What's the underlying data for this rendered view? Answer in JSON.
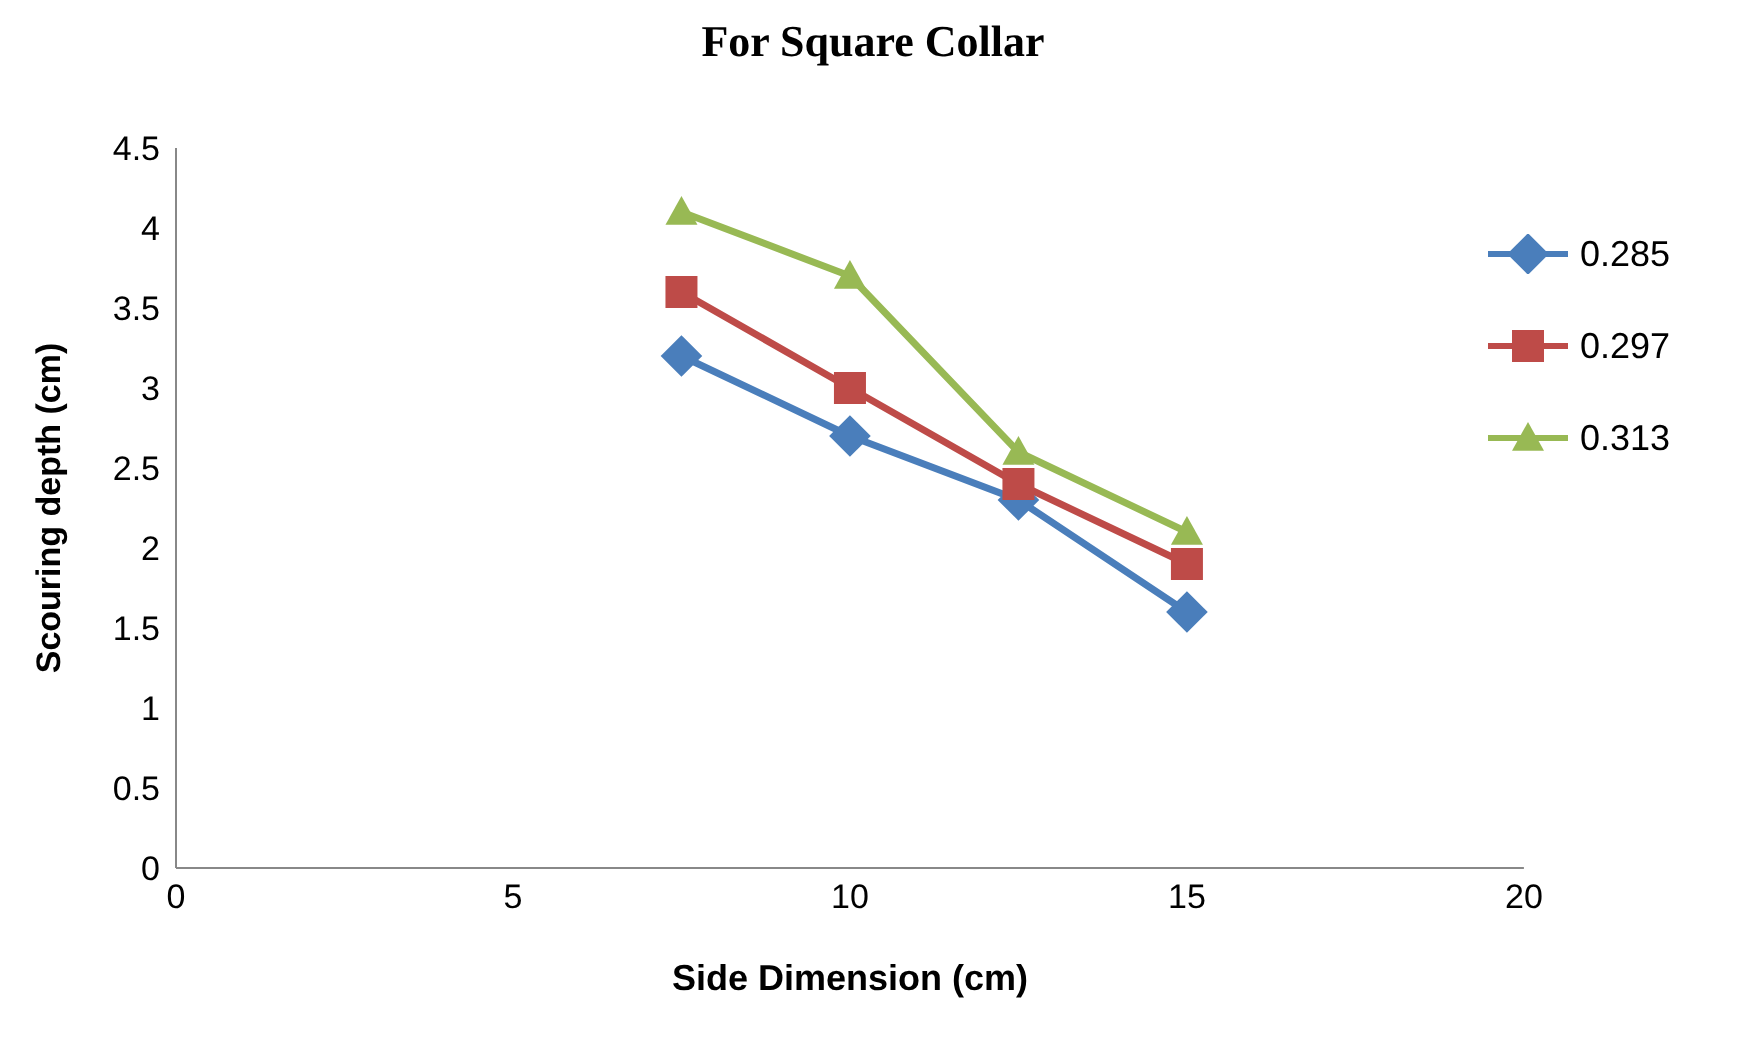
{
  "chart_data": {
    "type": "line",
    "title": "For Square Collar",
    "xlabel": "Side Dimension (cm)",
    "ylabel": "Scouring depth (cm)",
    "x": [
      7.5,
      10,
      12.5,
      15
    ],
    "series": [
      {
        "name": "0.285",
        "color": "#4a7ebb",
        "marker": "diamond",
        "values": [
          3.2,
          2.7,
          2.3,
          1.6
        ]
      },
      {
        "name": "0.297",
        "color": "#be4b48",
        "marker": "square",
        "values": [
          3.6,
          3.0,
          2.4,
          1.9
        ]
      },
      {
        "name": "0.313",
        "color": "#98b954",
        "marker": "triangle",
        "values": [
          4.1,
          3.7,
          2.6,
          2.1
        ]
      }
    ],
    "xlim": [
      0,
      20
    ],
    "xticks": [
      0,
      5,
      10,
      15,
      20
    ],
    "ylim": [
      0,
      4.5
    ],
    "yticks": [
      0,
      0.5,
      1,
      1.5,
      2,
      2.5,
      3,
      3.5,
      4,
      4.5
    ],
    "grid": false,
    "legend": "top right",
    "line_style": "solid"
  }
}
